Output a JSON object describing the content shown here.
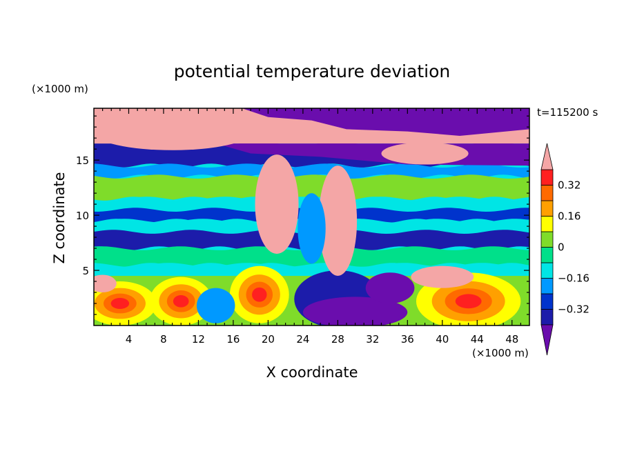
{
  "chart_data": {
    "type": "heatmap",
    "title": "potential temperature deviation",
    "xlabel": "X coordinate",
    "ylabel": "Z coordinate",
    "x_unit": "(×1000 m)",
    "y_unit": "(×1000 m)",
    "time_label": "t=115200 s",
    "xlim": [
      0,
      50
    ],
    "ylim": [
      0,
      19.7
    ],
    "x_ticks": [
      4,
      8,
      12,
      16,
      20,
      24,
      28,
      32,
      36,
      40,
      44,
      48
    ],
    "y_ticks": [
      5,
      10,
      15
    ],
    "colorbar": {
      "levels": [
        -0.4,
        -0.32,
        -0.24,
        -0.16,
        -0.08,
        0,
        0.08,
        0.16,
        0.24,
        0.32,
        0.4
      ],
      "labels": [
        "0.32",
        "0.16",
        "0",
        "−0.16",
        "−0.32"
      ],
      "label_values": [
        0.32,
        0.16,
        0,
        -0.16,
        -0.32
      ],
      "colors": [
        "#6a0dad",
        "#1c1caa",
        "#0033cc",
        "#0099ff",
        "#00e5e5",
        "#00e08a",
        "#7fdc2a",
        "#ffff00",
        "#ffa000",
        "#ff6a00",
        "#ff2020",
        "#f4a6a6"
      ],
      "extend": "both"
    },
    "bands": [
      {
        "z_range": [
          16.5,
          19.7
        ],
        "value": "mixed",
        "dominant": ">0.40 / <-0.40"
      },
      {
        "z_range": [
          14.5,
          16.5
        ],
        "value": -0.36
      },
      {
        "z_range": [
          13.5,
          14.5
        ],
        "value": -0.2
      },
      {
        "z_range": [
          11.5,
          13.5
        ],
        "value": 0.04
      },
      {
        "z_range": [
          10.5,
          11.5
        ],
        "value": -0.12
      },
      {
        "z_range": [
          9.5,
          10.5
        ],
        "value": -0.3
      },
      {
        "z_range": [
          8.5,
          9.5
        ],
        "value": -0.12
      },
      {
        "z_range": [
          7.0,
          8.5
        ],
        "value": -0.36
      },
      {
        "z_range": [
          5.5,
          7.0
        ],
        "value": -0.05
      },
      {
        "z_range": [
          4.5,
          5.5
        ],
        "value": -0.15
      },
      {
        "z_range": [
          0,
          4.5
        ],
        "value": "mixed",
        "dominant": "0.08 to 0.40"
      }
    ]
  }
}
